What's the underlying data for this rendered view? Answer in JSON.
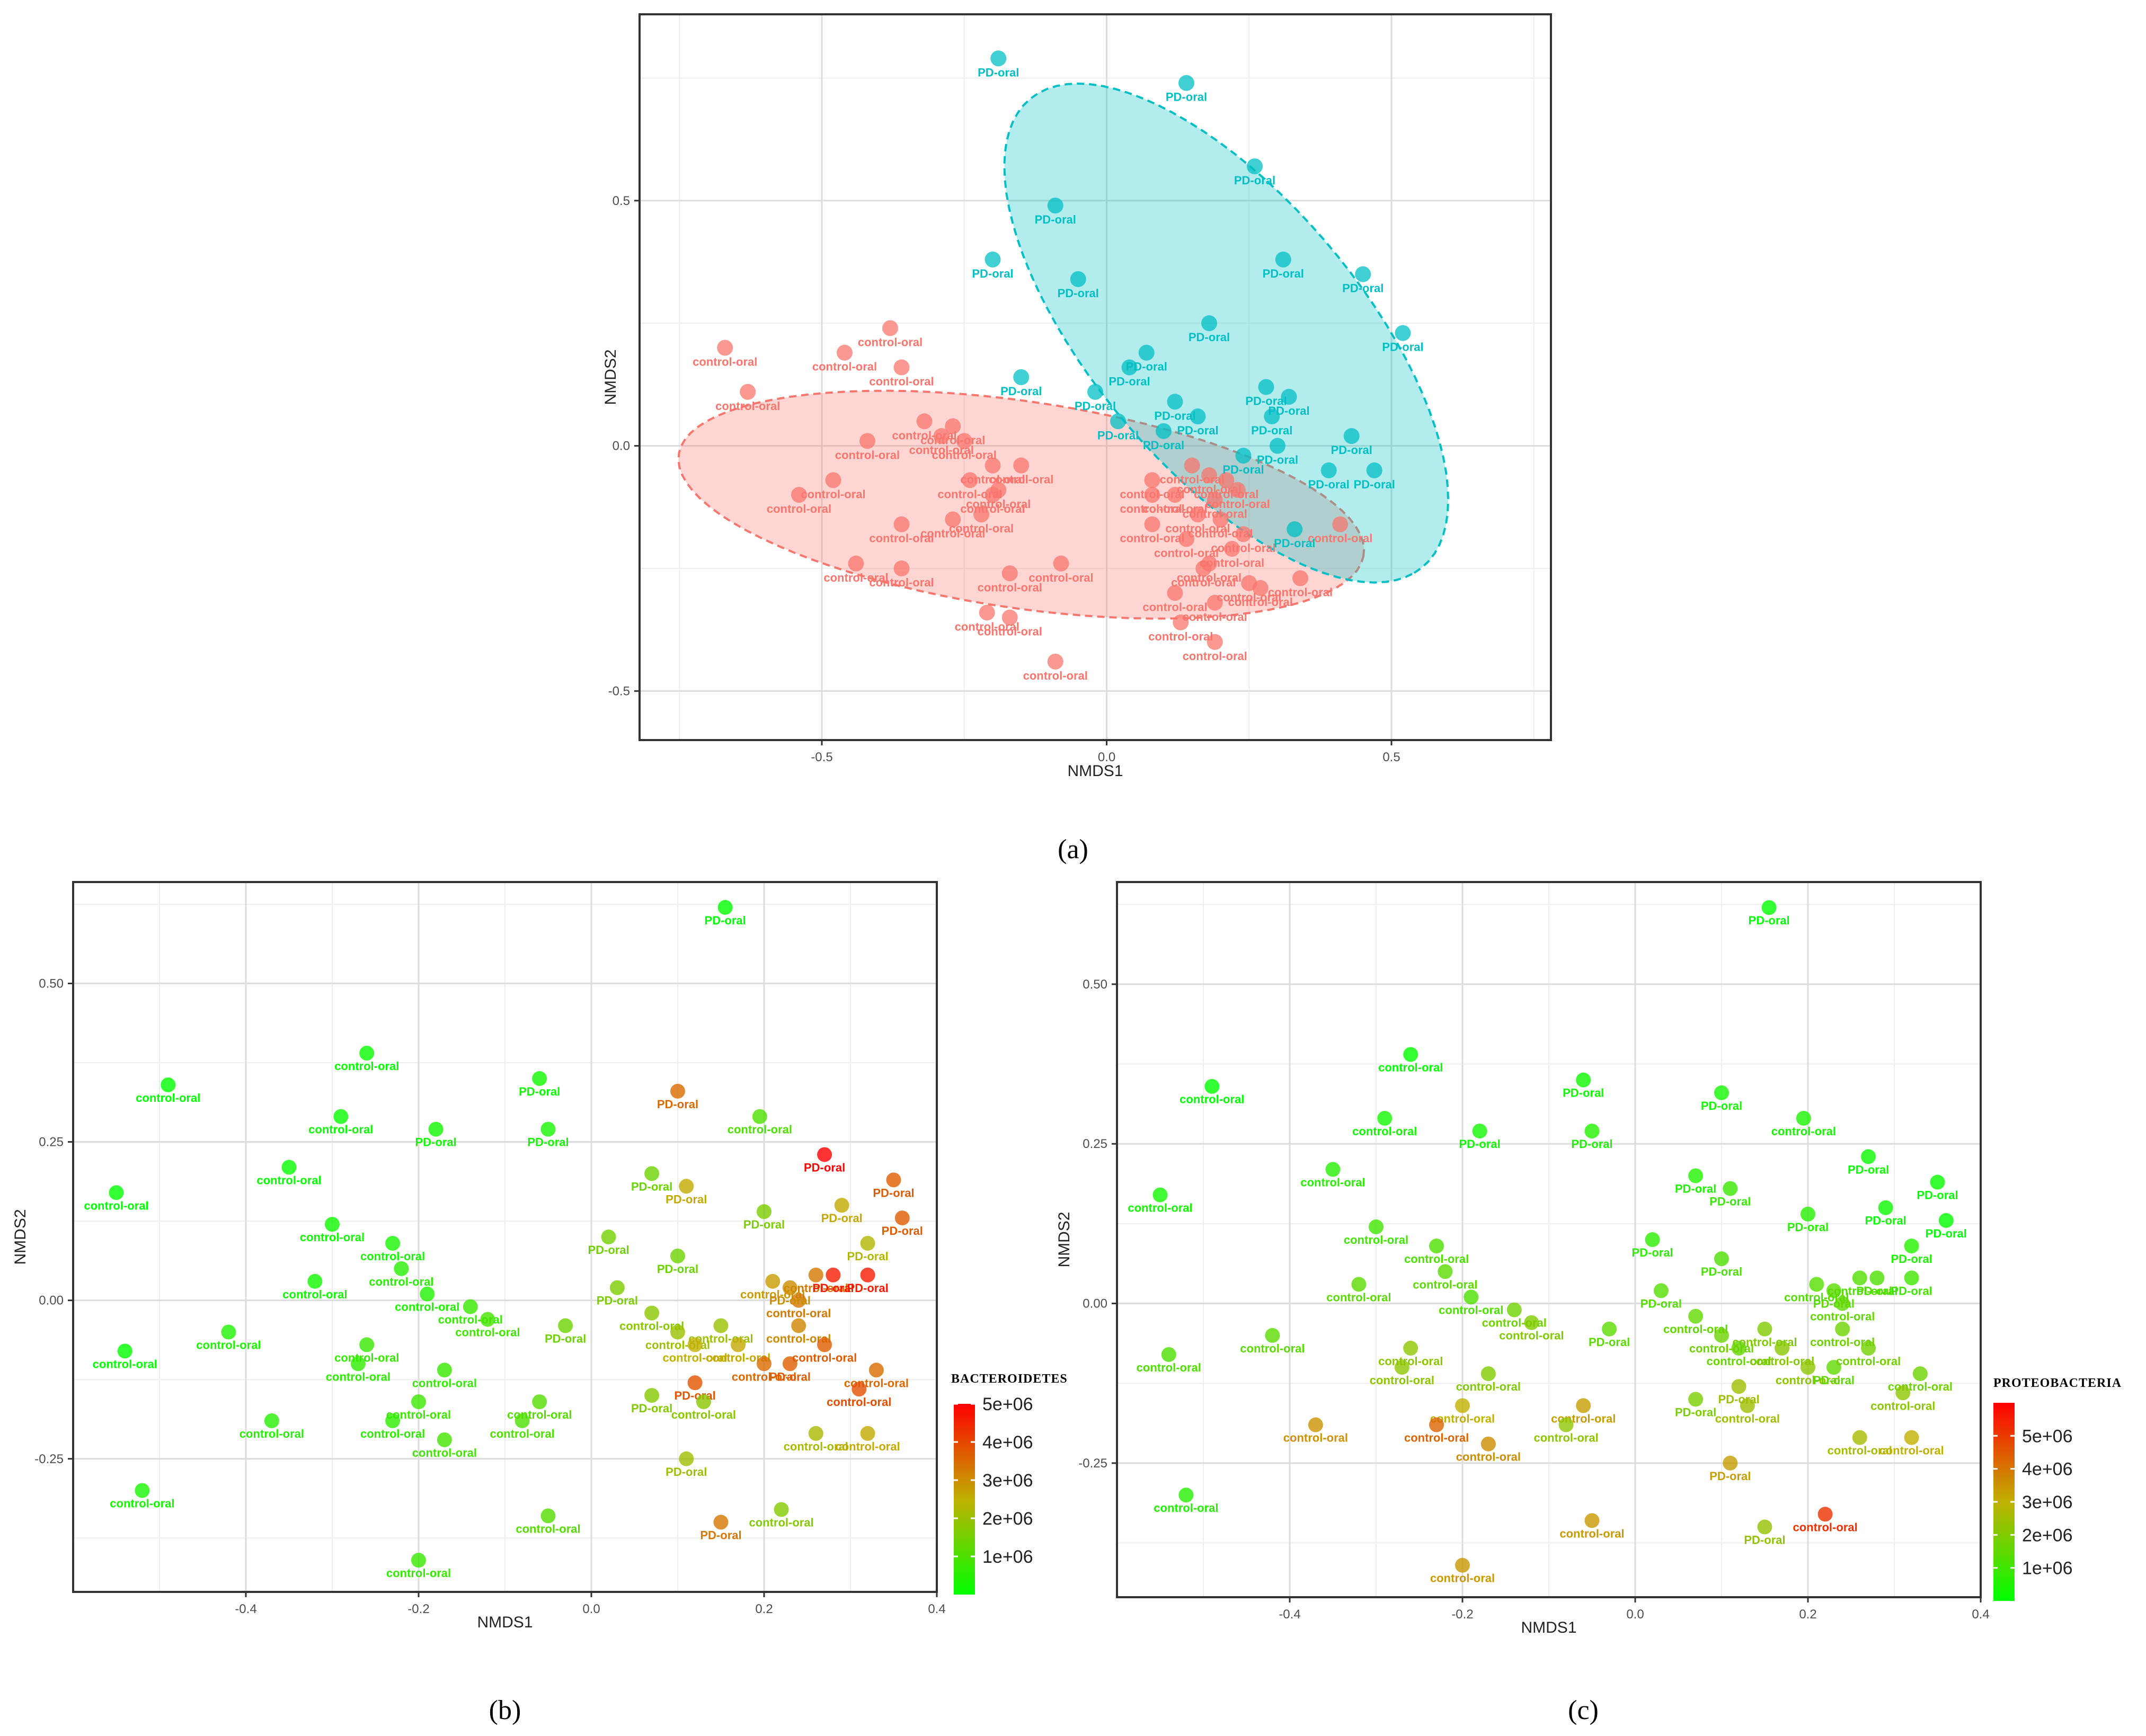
{
  "chart_data": [
    {
      "panel": "(a)",
      "type": "scatter",
      "xlabel": "NMDS1",
      "ylabel": "NMDS2",
      "xlim": [
        -0.82,
        0.78
      ],
      "ylim": [
        -0.6,
        0.88
      ],
      "xticks": [
        -0.5,
        0.0,
        0.5
      ],
      "xtick_labels": [
        "-0.5",
        "0.0",
        "0.5"
      ],
      "yticks": [
        -0.5,
        0.0,
        0.5
      ],
      "ytick_labels": [
        "-0.5",
        "0.0",
        "0.5"
      ],
      "grid": true,
      "ellipses": [
        {
          "group": "control-oral",
          "center": [
            -0.15,
            -0.12
          ],
          "semi_axes": [
            0.61,
            0.21
          ],
          "rotation_deg": -10,
          "color": "#F8766D"
        },
        {
          "group": "PD-oral",
          "center": [
            0.21,
            0.23
          ],
          "semi_axes": [
            0.59,
            0.25
          ],
          "rotation_deg": -56,
          "color": "#00BFC4"
        }
      ],
      "series": [
        {
          "name": "control-oral",
          "color": "#F8766D",
          "x": [
            -0.67,
            -0.63,
            -0.46,
            -0.38,
            -0.36,
            -0.54,
            -0.48,
            -0.42,
            -0.32,
            -0.29,
            -0.27,
            -0.25,
            -0.24,
            -0.2,
            -0.19,
            -0.15,
            -0.36,
            -0.27,
            -0.22,
            -0.2,
            -0.44,
            -0.36,
            -0.17,
            -0.08,
            -0.21,
            -0.17,
            -0.09,
            0.08,
            0.15,
            0.19,
            0.21,
            0.23,
            0.18,
            0.08,
            0.12,
            0.16,
            0.2,
            0.24,
            0.08,
            0.14,
            0.18,
            0.22,
            0.17,
            0.27,
            0.34,
            0.41,
            0.12,
            0.19,
            0.25,
            0.13,
            0.19
          ],
          "y": [
            0.2,
            0.11,
            0.19,
            0.24,
            0.16,
            -0.1,
            -0.07,
            0.01,
            0.05,
            0.02,
            0.04,
            0.01,
            -0.07,
            -0.04,
            -0.09,
            -0.04,
            -0.16,
            -0.15,
            -0.14,
            -0.1,
            -0.24,
            -0.25,
            -0.26,
            -0.24,
            -0.34,
            -0.35,
            -0.44,
            -0.07,
            -0.04,
            -0.11,
            -0.07,
            -0.09,
            -0.06,
            -0.16,
            -0.1,
            -0.14,
            -0.15,
            -0.18,
            -0.1,
            -0.19,
            -0.24,
            -0.21,
            -0.25,
            -0.29,
            -0.27,
            -0.16,
            -0.3,
            -0.32,
            -0.28,
            -0.36,
            -0.4
          ],
          "labels": [
            "control-oral",
            "control-oral",
            "control-oral",
            "control-oral",
            "control-oral",
            "control-oral",
            "control-oral",
            "control-oral",
            "control-oral",
            "control-oral",
            "control-oral",
            "control-oral",
            "control-oral",
            "control-oral",
            "control-oral",
            "control-oral",
            "control-oral",
            "control-oral",
            "control-oral",
            "control-oral",
            "control-oral",
            "control-oral",
            "control-oral",
            "control-oral",
            "control-oral",
            "control-oral",
            "control-oral",
            "control-oral",
            "control-oral",
            "control-oral",
            "control-oral",
            "control-oral",
            "control-oral",
            "control-oral",
            "control-oral",
            "control-oral",
            "control-oral",
            "control-oral",
            "control-oral",
            "control-oral",
            "control-oral",
            "control-oral",
            "control-oral",
            "control-oral",
            "control-oral",
            "control-oral",
            "control-oral",
            "control-oral",
            "control-oral",
            "control-oral",
            "control-oral"
          ]
        },
        {
          "name": "PD-oral",
          "color": "#00BFC4",
          "x": [
            -0.19,
            0.14,
            0.26,
            -0.09,
            -0.2,
            -0.05,
            0.31,
            0.45,
            0.18,
            0.52,
            -0.15,
            0.07,
            0.04,
            -0.02,
            0.02,
            0.12,
            0.16,
            0.1,
            0.28,
            0.32,
            0.29,
            0.43,
            0.24,
            0.3,
            0.39,
            0.47,
            0.33
          ],
          "y": [
            0.79,
            0.74,
            0.57,
            0.49,
            0.38,
            0.34,
            0.38,
            0.35,
            0.25,
            0.23,
            0.14,
            0.19,
            0.16,
            0.11,
            0.05,
            0.09,
            0.06,
            0.03,
            0.12,
            0.1,
            0.06,
            0.02,
            -0.02,
            0.0,
            -0.05,
            -0.05,
            -0.17
          ],
          "labels": [
            "PD-oral",
            "PD-oral",
            "PD-oral",
            "PD-oral",
            "PD-oral",
            "PD-oral",
            "PD-oral",
            "PD-oral",
            "PD-oral",
            "PD-oral",
            "PD-oral",
            "PD-oral",
            "PD-oral",
            "PD-oral",
            "PD-oral",
            "PD-oral",
            "PD-oral",
            "PD-oral",
            "PD-oral",
            "PD-oral",
            "PD-oral",
            "PD-oral",
            "PD-oral",
            "PD-oral",
            "PD-oral",
            "PD-oral",
            "PD-oral"
          ]
        }
      ]
    },
    {
      "panel": "(b)",
      "type": "scatter",
      "xlabel": "NMDS1",
      "ylabel": "NMDS2",
      "xlim": [
        -0.6,
        0.4
      ],
      "ylim": [
        -0.46,
        0.66
      ],
      "xticks": [
        -0.4,
        -0.2,
        0.0,
        0.2,
        0.4
      ],
      "xtick_labels": [
        "-0.4",
        "-0.2",
        "0.0",
        "0.2",
        "0.4"
      ],
      "yticks": [
        -0.25,
        0.0,
        0.25,
        0.5
      ],
      "ytick_labels": [
        "-0.25",
        "0.00",
        "0.25",
        "0.50"
      ],
      "grid": true,
      "color_scale": {
        "title": "BACTEROIDETES",
        "low": "#00FF00",
        "mid": "#C0B000",
        "high": "#FF0000",
        "min": 0,
        "max": 5000000,
        "ticks": [
          1000000,
          2000000,
          3000000,
          4000000,
          5000000
        ],
        "tick_labels": [
          "1e+06",
          "2e+06",
          "3e+06",
          "4e+06",
          "5e+06"
        ]
      },
      "points": {
        "x": [
          0.155,
          -0.49,
          -0.26,
          -0.29,
          -0.18,
          -0.06,
          -0.05,
          -0.35,
          -0.55,
          -0.3,
          -0.23,
          -0.32,
          -0.22,
          -0.19,
          -0.42,
          -0.54,
          -0.14,
          -0.26,
          -0.27,
          -0.17,
          -0.2,
          -0.23,
          -0.37,
          -0.17,
          -0.12,
          -0.06,
          -0.08,
          -0.52,
          -0.05,
          -0.2,
          0.07,
          0.1,
          0.195,
          0.27,
          0.35,
          0.11,
          0.29,
          0.36,
          0.2,
          0.32,
          0.02,
          0.1,
          0.03,
          0.21,
          0.24,
          0.26,
          0.23,
          0.28,
          0.32,
          -0.03,
          0.07,
          0.1,
          0.15,
          0.12,
          0.17,
          0.24,
          0.2,
          0.23,
          0.27,
          0.33,
          0.07,
          0.12,
          0.13,
          0.31,
          0.26,
          0.32,
          0.11,
          0.15,
          0.22
        ],
        "y": [
          0.62,
          0.34,
          0.39,
          0.29,
          0.27,
          0.35,
          0.27,
          0.21,
          0.17,
          0.12,
          0.09,
          0.03,
          0.05,
          0.01,
          -0.05,
          -0.08,
          -0.01,
          -0.07,
          -0.1,
          -0.11,
          -0.16,
          -0.19,
          -0.19,
          -0.22,
          -0.03,
          -0.16,
          -0.19,
          -0.3,
          -0.34,
          -0.41,
          0.2,
          0.33,
          0.29,
          0.23,
          0.19,
          0.18,
          0.15,
          0.13,
          0.14,
          0.09,
          0.1,
          0.07,
          0.02,
          0.03,
          0.0,
          0.04,
          0.02,
          0.04,
          0.04,
          -0.04,
          -0.02,
          -0.05,
          -0.04,
          -0.07,
          -0.07,
          -0.04,
          -0.1,
          -0.1,
          -0.07,
          -0.11,
          -0.15,
          -0.13,
          -0.16,
          -0.14,
          -0.21,
          -0.21,
          -0.25,
          -0.35,
          -0.33
        ],
        "values": [
          0,
          0,
          100000,
          100000,
          200000,
          200000,
          300000,
          100000,
          0,
          200000,
          300000,
          200000,
          500000,
          400000,
          400000,
          0,
          700000,
          700000,
          600000,
          700000,
          800000,
          600000,
          500000,
          900000,
          900000,
          1100000,
          1000000,
          300000,
          1100000,
          700000,
          1400000,
          3500000,
          1000000,
          5000000,
          3700000,
          2600000,
          2600000,
          3700000,
          1600000,
          2300000,
          1500000,
          1400000,
          1600000,
          2800000,
          3300000,
          3300000,
          3000000,
          4600000,
          4600000,
          1400000,
          1800000,
          2000000,
          2000000,
          2500000,
          2600000,
          3100000,
          3500000,
          3700000,
          3700000,
          3500000,
          1700000,
          3800000,
          1800000,
          3900000,
          2200000,
          2600000,
          2100000,
          3300000,
          1700000
        ],
        "labels": [
          "PD-oral",
          "control-oral",
          "control-oral",
          "control-oral",
          "PD-oral",
          "PD-oral",
          "PD-oral",
          "control-oral",
          "control-oral",
          "control-oral",
          "control-oral",
          "control-oral",
          "control-oral",
          "control-oral",
          "control-oral",
          "control-oral",
          "control-oral",
          "control-oral",
          "control-oral",
          "control-oral",
          "control-oral",
          "control-oral",
          "control-oral",
          "control-oral",
          "control-oral",
          "control-oral",
          "control-oral",
          "control-oral",
          "control-oral",
          "control-oral",
          "PD-oral",
          "PD-oral",
          "control-oral",
          "PD-oral",
          "PD-oral",
          "PD-oral",
          "PD-oral",
          "PD-oral",
          "PD-oral",
          "PD-oral",
          "PD-oral",
          "PD-oral",
          "PD-oral",
          "control-oral",
          "control-oral",
          "control-oral",
          "PD-oral",
          "PD-oral",
          "PD-oral",
          "PD-oral",
          "control-oral",
          "control-oral",
          "control-oral",
          "control-oral",
          "control-oral",
          "control-oral",
          "control-oral",
          "PD-oral",
          "control-oral",
          "control-oral",
          "PD-oral",
          "PD-oral",
          "control-oral",
          "control-oral",
          "control-oral",
          "control-oral",
          "PD-oral",
          "PD-oral",
          "control-oral"
        ]
      }
    },
    {
      "panel": "(c)",
      "type": "scatter",
      "xlabel": "NMDS1",
      "ylabel": "NMDS2",
      "xlim": [
        -0.6,
        0.4
      ],
      "ylim": [
        -0.46,
        0.66
      ],
      "xticks": [
        -0.4,
        -0.2,
        0.0,
        0.2,
        0.4
      ],
      "xtick_labels": [
        "-0.4",
        "-0.2",
        "0.0",
        "0.2",
        "0.4"
      ],
      "yticks": [
        -0.25,
        0.0,
        0.25,
        0.5
      ],
      "ytick_labels": [
        "-0.25",
        "0.00",
        "0.25",
        "0.50"
      ],
      "grid": true,
      "color_scale": {
        "title": "PROTEOBACTERIA",
        "low": "#00FF00",
        "mid": "#C0B000",
        "high": "#FF0000",
        "min": 0,
        "max": 6000000,
        "ticks": [
          1000000,
          2000000,
          3000000,
          4000000,
          5000000
        ],
        "tick_labels": [
          "1e+06",
          "2e+06",
          "3e+06",
          "4e+06",
          "5e+06"
        ]
      },
      "points": {
        "x": [
          0.155,
          -0.49,
          -0.26,
          -0.29,
          -0.18,
          -0.06,
          -0.05,
          -0.35,
          -0.55,
          -0.3,
          -0.23,
          -0.32,
          -0.22,
          -0.19,
          -0.42,
          -0.54,
          -0.14,
          -0.26,
          -0.27,
          -0.17,
          -0.2,
          -0.23,
          -0.37,
          -0.17,
          -0.12,
          -0.06,
          -0.08,
          -0.52,
          -0.05,
          -0.2,
          0.07,
          0.1,
          0.195,
          0.27,
          0.35,
          0.11,
          0.29,
          0.36,
          0.2,
          0.32,
          0.02,
          0.1,
          0.03,
          0.21,
          0.24,
          0.26,
          0.23,
          0.28,
          0.32,
          -0.03,
          0.07,
          0.1,
          0.15,
          0.12,
          0.17,
          0.24,
          0.2,
          0.23,
          0.27,
          0.33,
          0.07,
          0.12,
          0.13,
          0.31,
          0.26,
          0.32,
          0.11,
          0.15,
          0.22
        ],
        "y": [
          0.62,
          0.34,
          0.39,
          0.29,
          0.27,
          0.35,
          0.27,
          0.21,
          0.17,
          0.12,
          0.09,
          0.03,
          0.05,
          0.01,
          -0.05,
          -0.08,
          -0.01,
          -0.07,
          -0.1,
          -0.11,
          -0.16,
          -0.19,
          -0.19,
          -0.22,
          -0.03,
          -0.16,
          -0.19,
          -0.3,
          -0.34,
          -0.41,
          0.2,
          0.33,
          0.29,
          0.23,
          0.19,
          0.18,
          0.15,
          0.13,
          0.14,
          0.09,
          0.1,
          0.07,
          0.02,
          0.03,
          0.0,
          0.04,
          0.02,
          0.04,
          0.04,
          -0.04,
          -0.02,
          -0.05,
          -0.04,
          -0.07,
          -0.07,
          -0.04,
          -0.1,
          -0.1,
          -0.07,
          -0.11,
          -0.15,
          -0.13,
          -0.16,
          -0.14,
          -0.21,
          -0.21,
          -0.25,
          -0.35,
          -0.33
        ],
        "values": [
          0,
          0,
          0,
          300000,
          300000,
          200000,
          500000,
          600000,
          300000,
          1000000,
          1200000,
          1400000,
          1400000,
          1200000,
          1400000,
          1200000,
          1700000,
          2200000,
          2200000,
          2000000,
          3000000,
          4300000,
          3500000,
          3600000,
          2000000,
          3300000,
          2200000,
          600000,
          3400000,
          3400000,
          500000,
          300000,
          400000,
          200000,
          100000,
          900000,
          200000,
          0,
          600000,
          500000,
          700000,
          1200000,
          1300000,
          1300000,
          1500000,
          1300000,
          1400000,
          1200000,
          1000000,
          1400000,
          1500000,
          1700000,
          2000000,
          1600000,
          2100000,
          1700000,
          2200000,
          1500000,
          1800000,
          1700000,
          1900000,
          2500000,
          2500000,
          2200000,
          2600000,
          3000000,
          3300000,
          2300000,
          5200000
        ],
        "labels": [
          "PD-oral",
          "control-oral",
          "control-oral",
          "control-oral",
          "PD-oral",
          "PD-oral",
          "PD-oral",
          "control-oral",
          "control-oral",
          "control-oral",
          "control-oral",
          "control-oral",
          "control-oral",
          "control-oral",
          "control-oral",
          "control-oral",
          "control-oral",
          "control-oral",
          "control-oral",
          "control-oral",
          "control-oral",
          "control-oral",
          "control-oral",
          "control-oral",
          "control-oral",
          "control-oral",
          "control-oral",
          "control-oral",
          "control-oral",
          "control-oral",
          "PD-oral",
          "PD-oral",
          "control-oral",
          "PD-oral",
          "PD-oral",
          "PD-oral",
          "PD-oral",
          "PD-oral",
          "PD-oral",
          "PD-oral",
          "PD-oral",
          "PD-oral",
          "PD-oral",
          "control-oral",
          "control-oral",
          "control-oral",
          "PD-oral",
          "PD-oral",
          "PD-oral",
          "PD-oral",
          "control-oral",
          "control-oral",
          "control-oral",
          "control-oral",
          "control-oral",
          "control-oral",
          "control-oral",
          "PD-oral",
          "control-oral",
          "control-oral",
          "PD-oral",
          "PD-oral",
          "control-oral",
          "control-oral",
          "control-oral",
          "control-oral",
          "PD-oral",
          "PD-oral",
          "control-oral"
        ]
      }
    }
  ]
}
